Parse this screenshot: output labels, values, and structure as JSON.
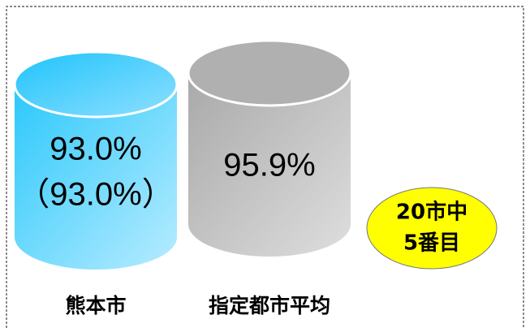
{
  "items": [
    {
      "label": "熊本市",
      "value": "93.0%",
      "sub_value": "（93.0%）"
    },
    {
      "label": "指定都市平均",
      "value": "95.9%"
    }
  ],
  "badge": {
    "line1": "20市中",
    "line2": "5番目"
  }
}
